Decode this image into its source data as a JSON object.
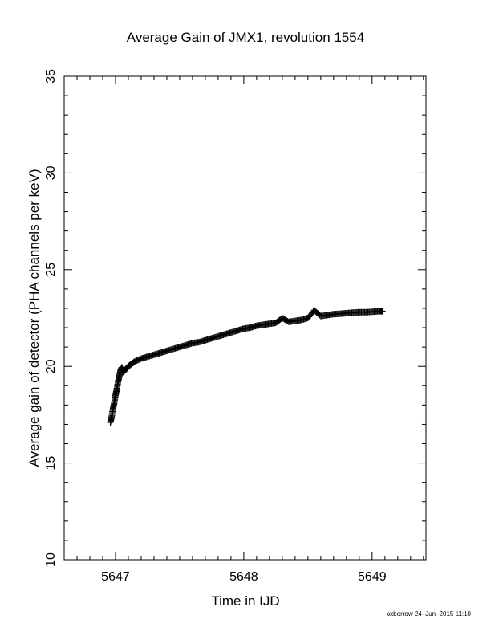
{
  "chart_data": {
    "type": "scatter",
    "title": "Average Gain of JMX1, revolution 1554",
    "xlabel": "Time in IJD",
    "ylabel": "Average gain of detector (PHA channels per keV)",
    "xlim": [
      5646.6,
      5649.42
    ],
    "ylim": [
      10,
      35
    ],
    "xticks": [
      5647,
      5648,
      5649
    ],
    "yticks": [
      10,
      15,
      20,
      25,
      30,
      35
    ],
    "marker": "plus",
    "grid": false,
    "series": [
      {
        "values": [
          [
            5646.96,
            17.1
          ],
          [
            5646.97,
            17.4
          ],
          [
            5646.98,
            17.8
          ],
          [
            5646.99,
            18.1
          ],
          [
            5647.0,
            18.5
          ],
          [
            5647.01,
            18.8
          ],
          [
            5647.02,
            19.2
          ],
          [
            5647.03,
            19.5
          ],
          [
            5647.04,
            19.8
          ],
          [
            5647.05,
            19.95
          ],
          [
            5647.06,
            19.7
          ],
          [
            5647.08,
            19.85
          ],
          [
            5647.1,
            20.0
          ],
          [
            5647.12,
            20.1
          ],
          [
            5647.15,
            20.25
          ],
          [
            5647.2,
            20.4
          ],
          [
            5647.25,
            20.5
          ],
          [
            5647.3,
            20.6
          ],
          [
            5647.35,
            20.7
          ],
          [
            5647.4,
            20.8
          ],
          [
            5647.45,
            20.9
          ],
          [
            5647.5,
            21.0
          ],
          [
            5647.55,
            21.1
          ],
          [
            5647.6,
            21.2
          ],
          [
            5647.65,
            21.25
          ],
          [
            5647.7,
            21.35
          ],
          [
            5647.75,
            21.45
          ],
          [
            5647.8,
            21.55
          ],
          [
            5647.85,
            21.65
          ],
          [
            5647.9,
            21.75
          ],
          [
            5647.95,
            21.85
          ],
          [
            5648.0,
            21.95
          ],
          [
            5648.05,
            22.0
          ],
          [
            5648.1,
            22.1
          ],
          [
            5648.15,
            22.15
          ],
          [
            5648.2,
            22.2
          ],
          [
            5648.25,
            22.25
          ],
          [
            5648.3,
            22.5
          ],
          [
            5648.35,
            22.3
          ],
          [
            5648.4,
            22.35
          ],
          [
            5648.45,
            22.4
          ],
          [
            5648.5,
            22.5
          ],
          [
            5648.55,
            22.9
          ],
          [
            5648.6,
            22.6
          ],
          [
            5648.65,
            22.65
          ],
          [
            5648.7,
            22.7
          ],
          [
            5648.75,
            22.72
          ],
          [
            5648.8,
            22.75
          ],
          [
            5648.85,
            22.78
          ],
          [
            5648.9,
            22.8
          ],
          [
            5648.95,
            22.8
          ],
          [
            5649.0,
            22.82
          ],
          [
            5649.05,
            22.85
          ],
          [
            5649.08,
            22.85
          ]
        ]
      }
    ]
  },
  "footer_stamp": "oxborrow 24–Jun–2015 11:10"
}
